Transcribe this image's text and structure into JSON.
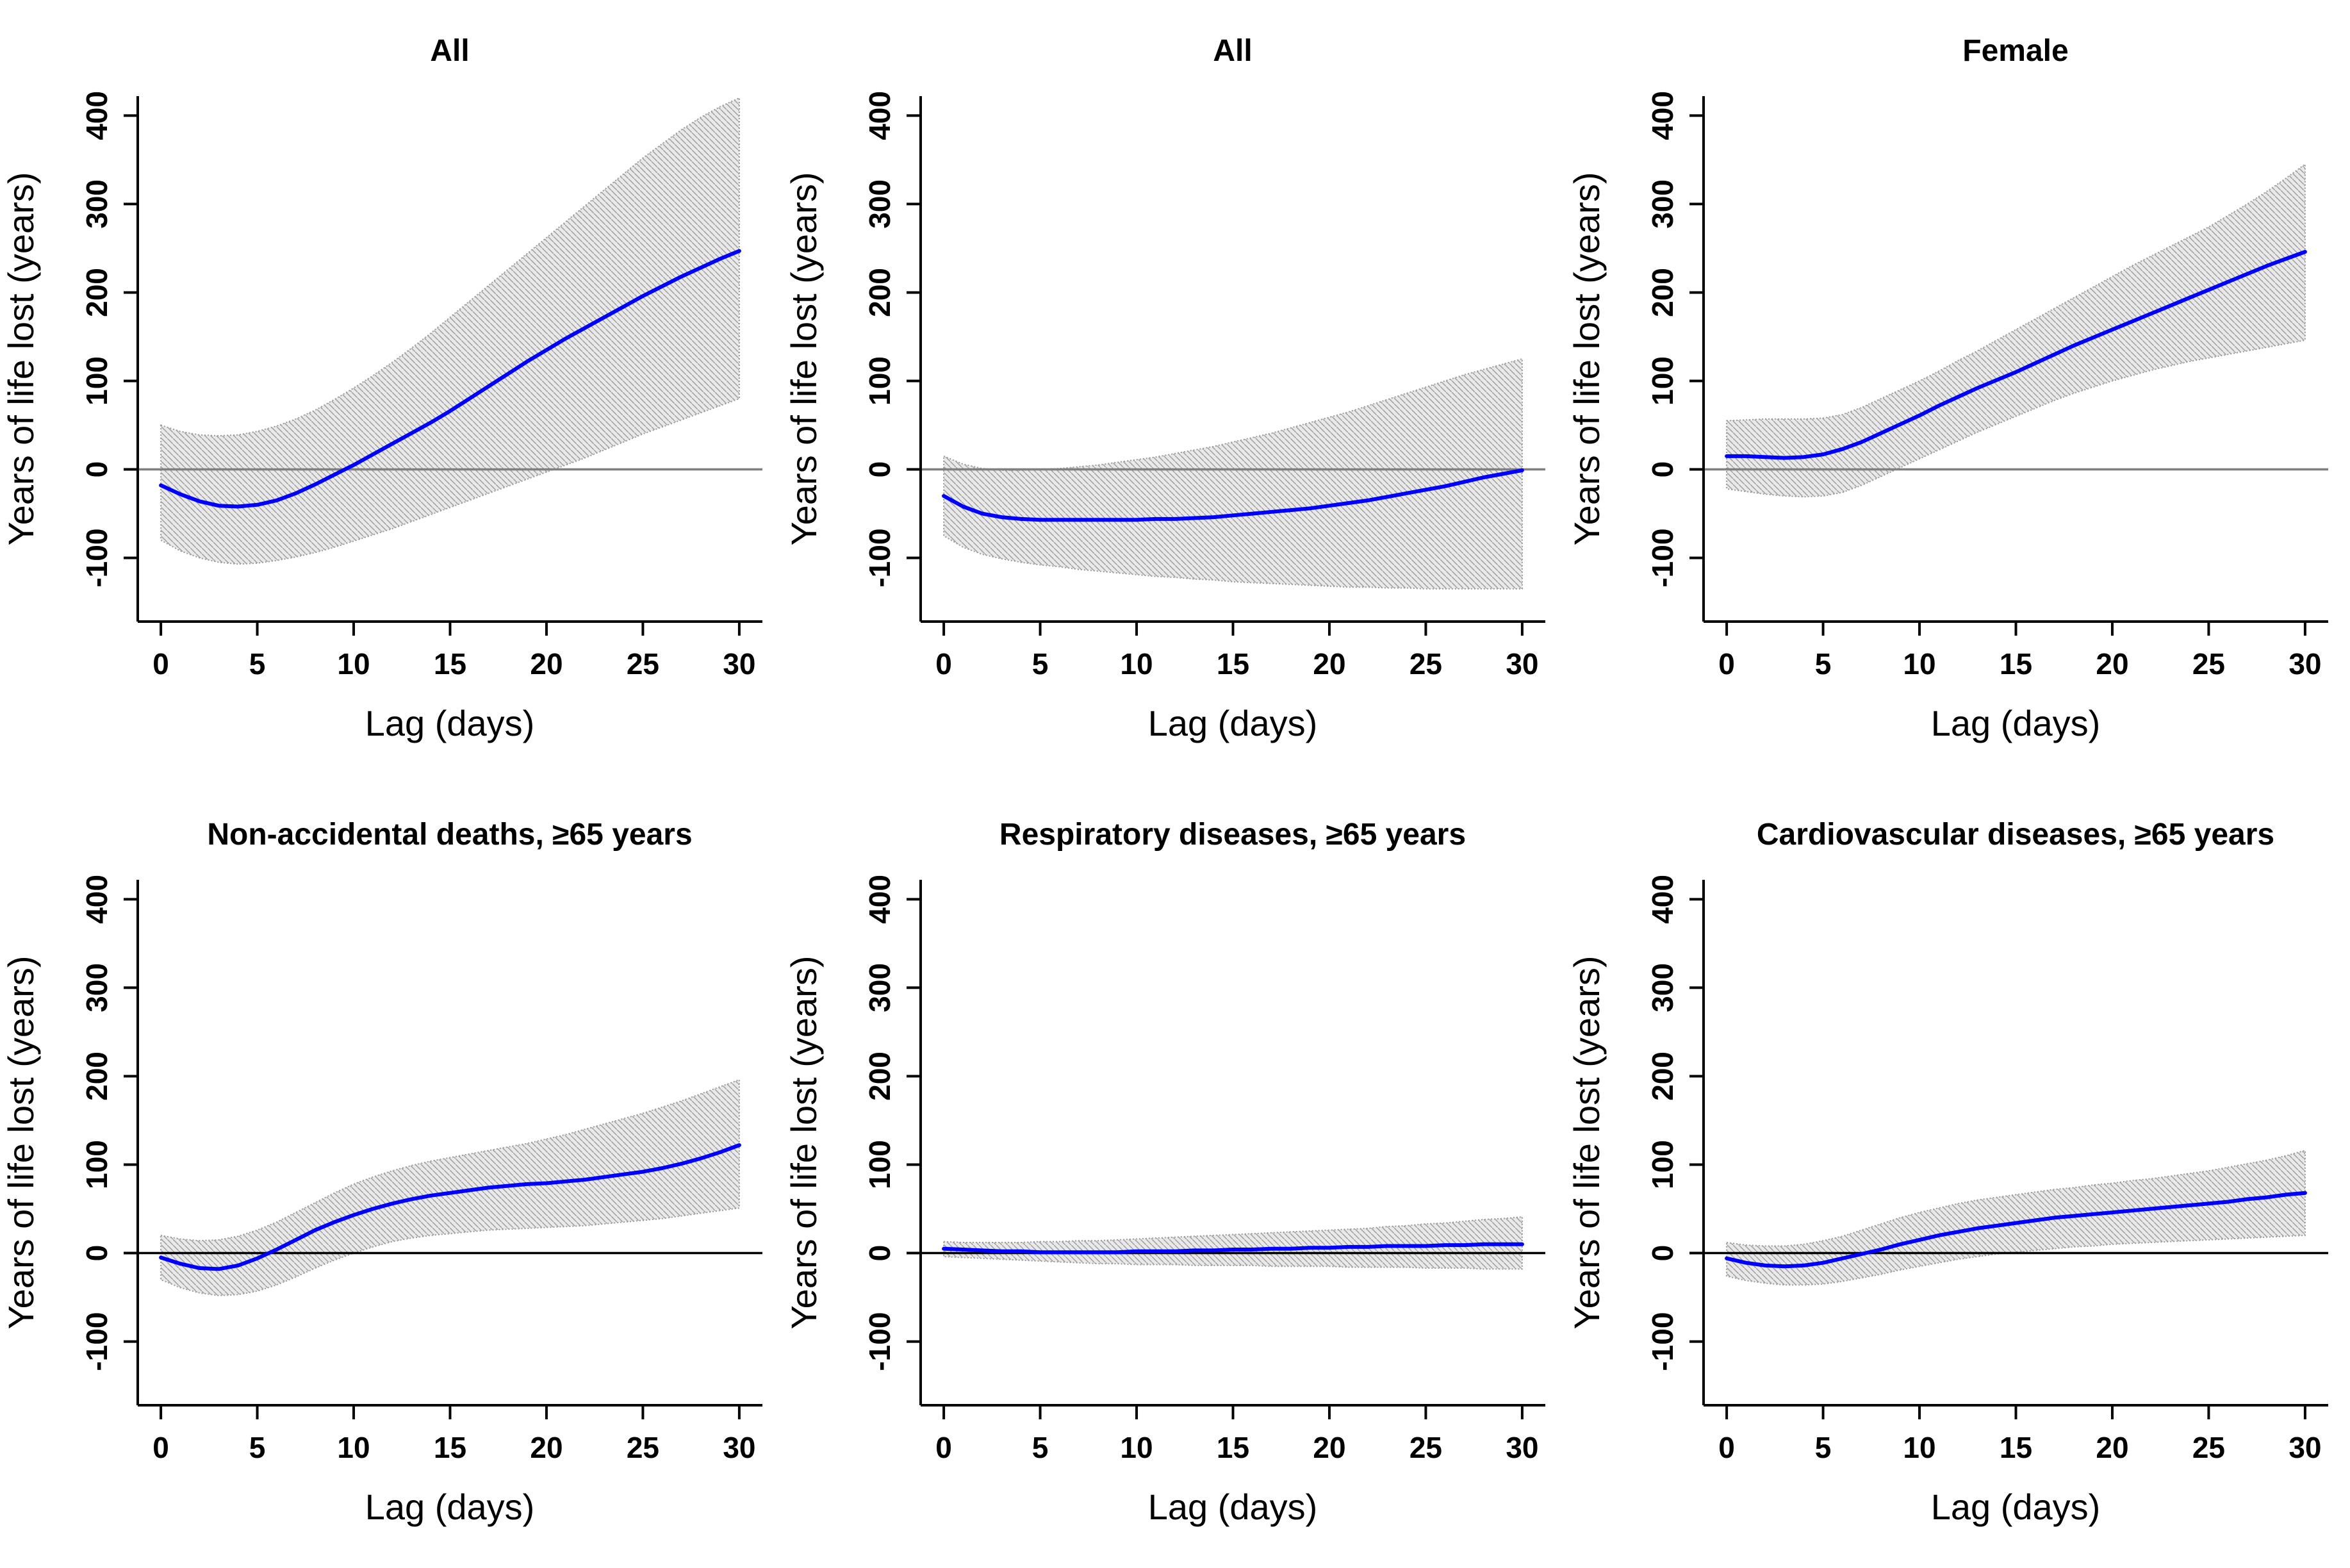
{
  "chart_data": {
    "type": "line",
    "description": "Six-panel figure of smoothed lag-response curves with hatched 95% confidence bands",
    "x_label": "Lag (days)",
    "y_label": "Years of life lost (years)",
    "x": [
      0,
      1,
      2,
      3,
      4,
      5,
      6,
      7,
      8,
      9,
      10,
      11,
      12,
      13,
      14,
      15,
      16,
      17,
      18,
      19,
      20,
      21,
      22,
      23,
      24,
      25,
      26,
      27,
      28,
      29,
      30
    ],
    "xlim": [
      0,
      30
    ],
    "ylim": [
      -150,
      400
    ],
    "xticks": [
      0,
      5,
      10,
      15,
      20,
      25,
      30
    ],
    "yticks": [
      -100,
      0,
      100,
      200,
      300,
      400
    ],
    "grid": false,
    "legend": "none",
    "line_color": "#0000ff",
    "band_fill": "#e9e9e9",
    "band_hatch_color": "#9c9c9c",
    "band_edge_color": "#9a9a9a",
    "panels": [
      {
        "title": "All",
        "xlabel": "Lag (days)",
        "ylabel": "Years of life lost (years)",
        "zero_line_color": "#808080",
        "mid": [
          -18,
          -28,
          -36,
          -41,
          -42,
          -40,
          -35,
          -27,
          -17,
          -6,
          5,
          17,
          29,
          41,
          53,
          66,
          80,
          94,
          108,
          122,
          135,
          148,
          160,
          172,
          184,
          196,
          207,
          218,
          228,
          238,
          247
        ],
        "upper": [
          50,
          43,
          39,
          38,
          39,
          43,
          49,
          57,
          67,
          79,
          92,
          106,
          121,
          137,
          154,
          172,
          190,
          208,
          226,
          244,
          262,
          280,
          298,
          316,
          334,
          352,
          368,
          384,
          398,
          410,
          420
        ],
        "lower": [
          -80,
          -92,
          -100,
          -105,
          -107,
          -106,
          -103,
          -99,
          -94,
          -88,
          -81,
          -74,
          -67,
          -59,
          -51,
          -43,
          -35,
          -27,
          -19,
          -11,
          -3,
          5,
          13,
          22,
          31,
          40,
          48,
          56,
          64,
          72,
          80
        ]
      },
      {
        "title": "All",
        "xlabel": "Lag (days)",
        "ylabel": "Years of life lost (years)",
        "zero_line_color": "#808080",
        "mid": [
          -30,
          -42,
          -50,
          -54,
          -56,
          -57,
          -57,
          -57,
          -57,
          -57,
          -57,
          -56,
          -56,
          -55,
          -54,
          -52,
          -50,
          -48,
          -46,
          -44,
          -41,
          -38,
          -35,
          -31,
          -27,
          -23,
          -19,
          -14,
          -9,
          -5,
          -1
        ],
        "upper": [
          15,
          6,
          1,
          -1,
          -1,
          0,
          1,
          3,
          5,
          8,
          11,
          14,
          18,
          22,
          26,
          31,
          36,
          41,
          47,
          53,
          59,
          65,
          72,
          79,
          86,
          93,
          100,
          107,
          113,
          119,
          125
        ],
        "lower": [
          -75,
          -88,
          -96,
          -101,
          -105,
          -108,
          -110,
          -113,
          -115,
          -117,
          -119,
          -121,
          -122,
          -124,
          -125,
          -127,
          -128,
          -129,
          -130,
          -131,
          -132,
          -133,
          -133,
          -134,
          -134,
          -135,
          -135,
          -135,
          -135,
          -135,
          -135
        ]
      },
      {
        "title": "Female",
        "xlabel": "Lag (days)",
        "ylabel": "Years of life lost (years)",
        "zero_line_color": "#808080",
        "mid": [
          15,
          15,
          14,
          13,
          14,
          17,
          23,
          31,
          41,
          51,
          61,
          72,
          82,
          92,
          101,
          110,
          120,
          130,
          140,
          149,
          158,
          167,
          176,
          185,
          194,
          203,
          212,
          221,
          230,
          238,
          246
        ],
        "upper": [
          55,
          56,
          57,
          57,
          57,
          58,
          62,
          70,
          80,
          90,
          100,
          111,
          123,
          134,
          146,
          158,
          170,
          182,
          194,
          206,
          218,
          230,
          241,
          252,
          263,
          274,
          287,
          300,
          314,
          329,
          345
        ],
        "lower": [
          -22,
          -25,
          -28,
          -30,
          -31,
          -30,
          -26,
          -18,
          -8,
          2,
          12,
          22,
          32,
          42,
          51,
          60,
          69,
          78,
          86,
          93,
          100,
          106,
          112,
          117,
          122,
          126,
          130,
          134,
          138,
          142,
          146
        ]
      },
      {
        "title": "Non-accidental deaths, ≥65 years",
        "xlabel": "Lag (days)",
        "ylabel": "Years of life lost (years)",
        "zero_line_color": "#000000",
        "mid": [
          -5,
          -12,
          -17,
          -18,
          -14,
          -6,
          4,
          15,
          26,
          35,
          43,
          50,
          56,
          61,
          65,
          68,
          71,
          74,
          76,
          78,
          79,
          81,
          83,
          86,
          89,
          92,
          96,
          101,
          107,
          114,
          122
        ],
        "upper": [
          20,
          16,
          14,
          15,
          19,
          26,
          35,
          46,
          57,
          68,
          78,
          86,
          93,
          99,
          104,
          108,
          112,
          116,
          120,
          124,
          129,
          134,
          140,
          146,
          152,
          158,
          165,
          172,
          180,
          188,
          196
        ],
        "lower": [
          -30,
          -39,
          -45,
          -48,
          -47,
          -43,
          -36,
          -27,
          -17,
          -8,
          0,
          7,
          13,
          17,
          20,
          22,
          24,
          26,
          27,
          28,
          29,
          30,
          31,
          33,
          35,
          37,
          39,
          42,
          45,
          48,
          51
        ]
      },
      {
        "title": "Respiratory diseases, ≥65 years",
        "xlabel": "Lag (days)",
        "ylabel": "Years of life lost (years)",
        "zero_line_color": "#000000",
        "mid": [
          5,
          4,
          3,
          2,
          2,
          1,
          1,
          1,
          1,
          1,
          2,
          2,
          2,
          3,
          3,
          4,
          4,
          5,
          5,
          6,
          6,
          7,
          7,
          8,
          8,
          8,
          9,
          9,
          10,
          10,
          10
        ],
        "upper": [
          13,
          12,
          12,
          12,
          12,
          13,
          13,
          14,
          14,
          15,
          16,
          17,
          18,
          19,
          20,
          21,
          22,
          23,
          24,
          25,
          26,
          27,
          28,
          30,
          31,
          33,
          34,
          36,
          38,
          39,
          41
        ],
        "lower": [
          -4,
          -5,
          -6,
          -7,
          -8,
          -9,
          -10,
          -11,
          -12,
          -12,
          -13,
          -13,
          -13,
          -14,
          -14,
          -14,
          -14,
          -15,
          -15,
          -15,
          -15,
          -16,
          -16,
          -16,
          -16,
          -17,
          -17,
          -17,
          -18,
          -18,
          -18
        ]
      },
      {
        "title": "Cardiovascular diseases, ≥65 years",
        "xlabel": "Lag (days)",
        "ylabel": "Years of life lost (years)",
        "zero_line_color": "#000000",
        "mid": [
          -6,
          -11,
          -14,
          -15,
          -14,
          -11,
          -6,
          -1,
          4,
          10,
          15,
          20,
          24,
          28,
          31,
          34,
          37,
          40,
          42,
          44,
          46,
          48,
          50,
          52,
          54,
          56,
          58,
          61,
          63,
          66,
          68
        ],
        "upper": [
          12,
          9,
          8,
          8,
          10,
          14,
          19,
          26,
          33,
          40,
          46,
          51,
          56,
          60,
          63,
          66,
          69,
          72,
          74,
          77,
          79,
          82,
          84,
          87,
          90,
          93,
          97,
          101,
          105,
          110,
          116
        ],
        "lower": [
          -26,
          -31,
          -34,
          -36,
          -36,
          -35,
          -32,
          -28,
          -24,
          -19,
          -15,
          -11,
          -7,
          -4,
          -1,
          1,
          3,
          5,
          7,
          8,
          10,
          11,
          12,
          13,
          14,
          15,
          16,
          17,
          18,
          19,
          20
        ]
      }
    ]
  }
}
